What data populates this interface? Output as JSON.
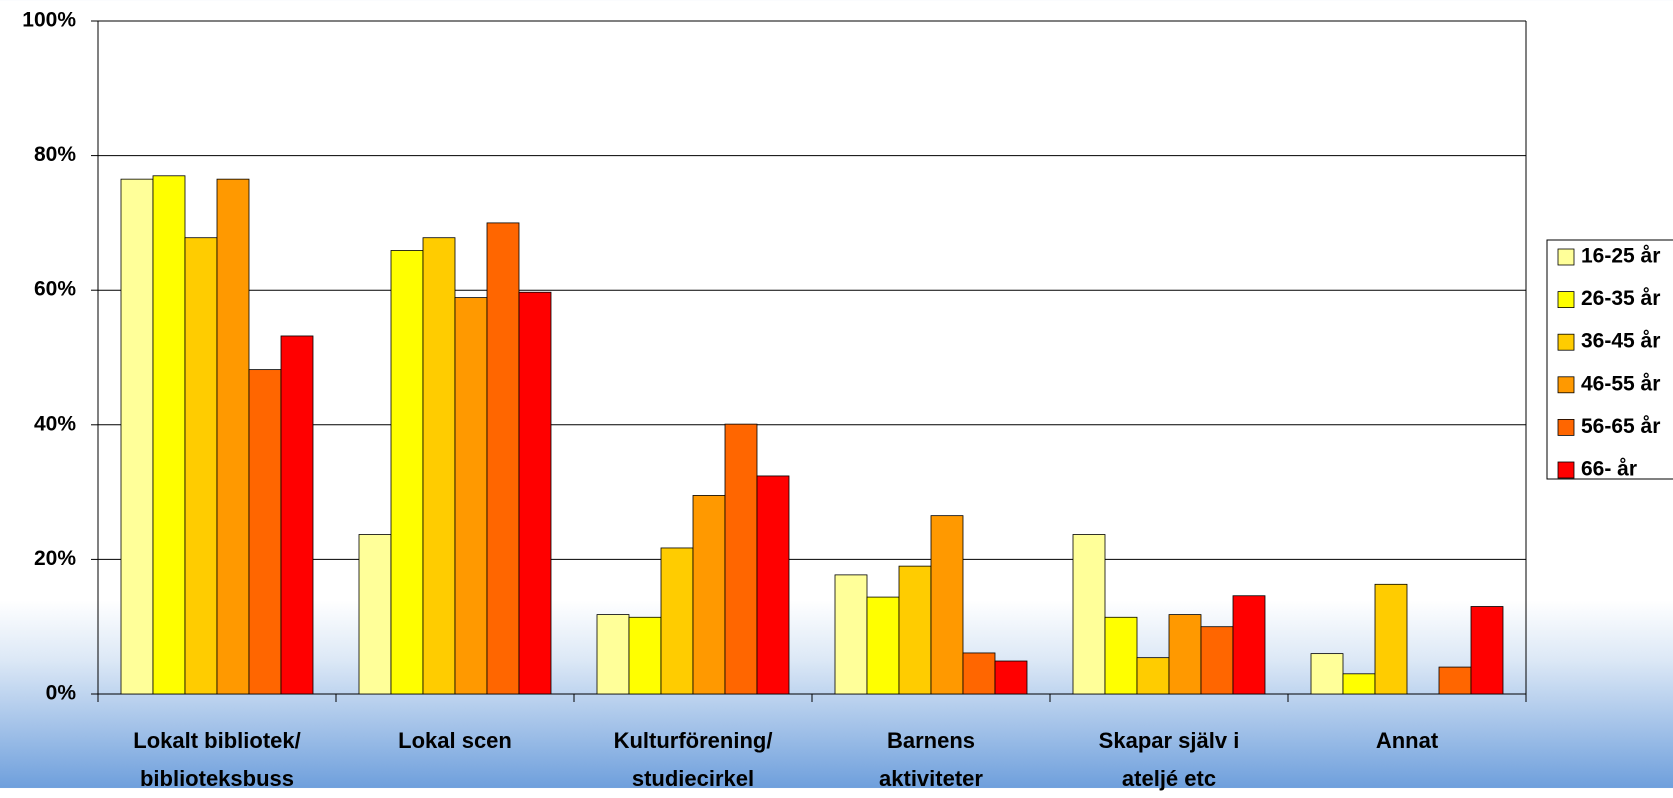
{
  "chart_data": {
    "type": "bar",
    "categories": [
      "Lokalt bibliotek/\nbiblioteksbuss",
      "Lokal scen",
      "Kulturförening/\nstudiecirkel",
      "Barnens\naktiviteter",
      "Skapar själv i\nateljé etc",
      "Annat"
    ],
    "series": [
      {
        "name": "16-25 år",
        "color": "#ffff99",
        "values": [
          76.5,
          23.7,
          11.8,
          17.7,
          23.7,
          6.0
        ]
      },
      {
        "name": "26-35 år",
        "color": "#ffff00",
        "values": [
          77.0,
          65.9,
          11.4,
          14.4,
          11.4,
          3.0
        ]
      },
      {
        "name": "36-45 år",
        "color": "#ffcc00",
        "values": [
          67.8,
          67.8,
          21.7,
          19.0,
          5.4,
          16.3
        ]
      },
      {
        "name": "46-55 år",
        "color": "#ff9900",
        "values": [
          76.5,
          58.9,
          29.5,
          26.5,
          11.8,
          0
        ]
      },
      {
        "name": "56-65 år",
        "color": "#ff6600",
        "values": [
          48.2,
          70.0,
          40.1,
          6.1,
          10.0,
          4.0
        ]
      },
      {
        "name": "66- år",
        "color": "#ff0000",
        "values": [
          53.2,
          59.7,
          32.4,
          4.9,
          14.6,
          13.0
        ]
      }
    ],
    "ylim": [
      0,
      100
    ],
    "yticks": [
      {
        "value": 0,
        "label": "0%"
      },
      {
        "value": 20,
        "label": "20%"
      },
      {
        "value": 40,
        "label": "40%"
      },
      {
        "value": 60,
        "label": "60%"
      },
      {
        "value": 80,
        "label": "80%"
      },
      {
        "value": 100,
        "label": "100%"
      }
    ],
    "grid": true,
    "legend": "right"
  }
}
